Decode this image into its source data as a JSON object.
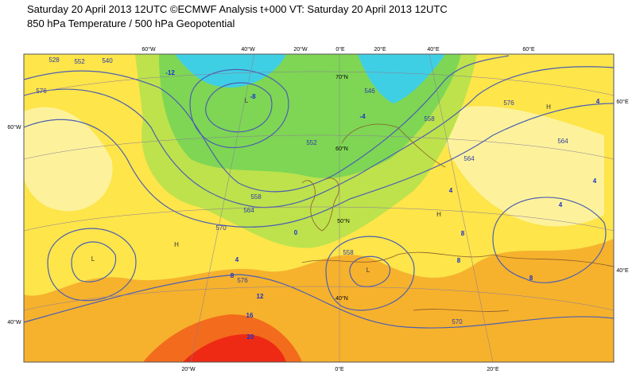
{
  "header": {
    "title": "Saturday 20 April 2013 12UTC ©ECMWF Analysis t+000 VT: Saturday 20 April 2013 12UTC",
    "subtitle": "850 hPa Temperature / 500 hPa Geopotential"
  },
  "map": {
    "longitude_labels_top": [
      "60°W",
      "40°W",
      "20°W",
      "0°E",
      "20°E",
      "40°E",
      "60°E"
    ],
    "longitude_labels_bottom": [
      "20°W",
      "0°E",
      "20°E"
    ],
    "latitude_labels_left": [
      "60°W",
      "40°W"
    ],
    "latitude_labels_right": [
      "60°E",
      "40°E"
    ],
    "latitude_labels_inner": [
      "70°N",
      "60°N",
      "50°N",
      "40°N"
    ],
    "geopotential_labels": [
      "552",
      "540",
      "528",
      "576",
      "564",
      "558",
      "570",
      "576",
      "552",
      "546",
      "558",
      "564",
      "564",
      "576",
      "570",
      "558"
    ],
    "temperature_labels": [
      "0",
      "4",
      "8",
      "12",
      "16",
      "20",
      "4",
      "8",
      "8",
      "8",
      "4",
      "4",
      "-4",
      "-8",
      "-12",
      "4"
    ],
    "pressure_centres": [
      "L",
      "L",
      "L",
      "H",
      "H",
      "H"
    ]
  }
}
